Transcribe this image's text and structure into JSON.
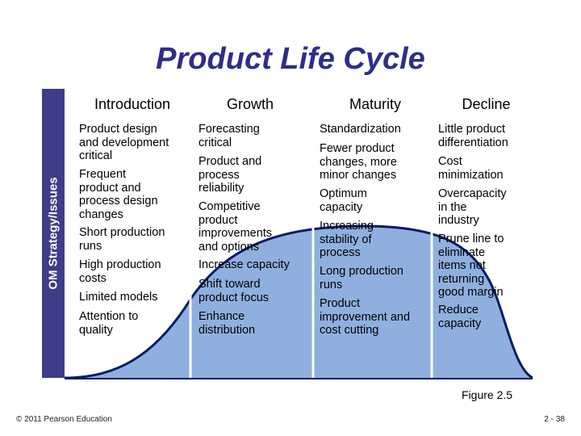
{
  "title": "Product Life Cycle",
  "side_label": "OM Strategy/Issues",
  "stages": [
    {
      "name": "Introduction",
      "items": [
        [
          "Product design",
          "and development",
          "critical"
        ],
        [
          "Frequent",
          "product and",
          "process design",
          "changes"
        ],
        [
          "Short production",
          "runs"
        ],
        [
          "High production",
          "costs"
        ],
        [
          "Limited models"
        ],
        [
          "Attention to",
          "quality"
        ]
      ]
    },
    {
      "name": "Growth",
      "items": [
        [
          "Forecasting",
          "critical"
        ],
        [
          "Product and",
          "process",
          "reliability"
        ],
        [
          "Competitive",
          "product",
          "improvements",
          "and options"
        ],
        [
          "Increase capacity"
        ],
        [
          "Shift toward",
          "product focus"
        ],
        [
          "Enhance",
          "distribution"
        ]
      ]
    },
    {
      "name": "Maturity",
      "items": [
        [
          "Standardization"
        ],
        [
          "Fewer product",
          "changes, more",
          "minor changes"
        ],
        [
          "Optimum",
          "capacity"
        ],
        [
          "Increasing",
          "stability of",
          "process"
        ],
        [
          "Long production",
          "runs"
        ],
        [
          "Product",
          "improvement and",
          "cost cutting"
        ]
      ]
    },
    {
      "name": "Decline",
      "items": [
        [
          "Little product",
          "differentiation"
        ],
        [
          "Cost",
          "minimization"
        ],
        [
          "Overcapacity",
          "in the",
          "industry"
        ],
        [
          "Prune line to",
          "eliminate",
          "items not",
          "returning",
          "good margin"
        ],
        [
          "Reduce",
          "capacity"
        ]
      ]
    }
  ],
  "figure_label": "Figure 2.5",
  "copyright": "© 2011 Pearson Education",
  "page_number": "2 - 38",
  "colors": {
    "title": "#2e2e8a",
    "side_bar": "#3d3d88",
    "curve_fill": "#8fb0df",
    "curve_stroke": "#0a1c66"
  }
}
